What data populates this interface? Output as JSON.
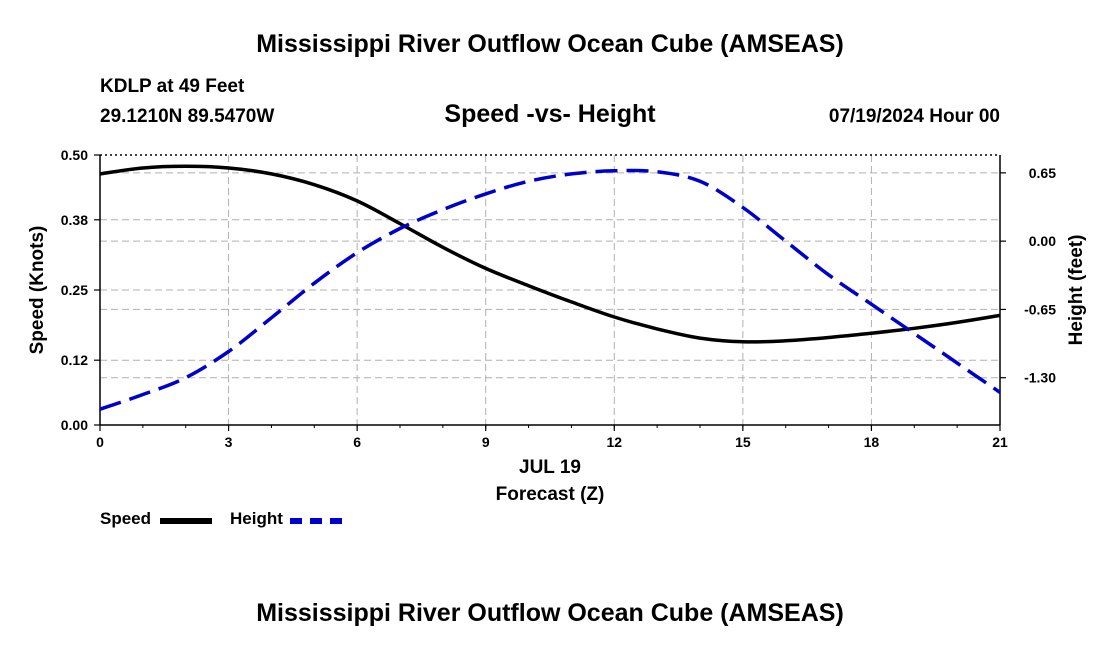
{
  "page": {
    "title_top": "Mississippi River Outflow Ocean Cube (AMSEAS)",
    "title_bottom": "Mississippi River Outflow Ocean Cube (AMSEAS)",
    "station": "KDLP at 49 Feet",
    "coords": "29.1210N  89.5470W",
    "subtitle": "Speed -vs- Height",
    "datehour": "07/19/2024 Hour 00"
  },
  "colors": {
    "speed": "#000000",
    "height": "#0000cc",
    "grid": "#b0b0b0"
  },
  "chart_data": {
    "type": "line",
    "title": "Speed -vs- Height",
    "xlabel": "Forecast (Z)",
    "xlabel_date": "JUL 19",
    "ylabel": "Speed (Knots)",
    "ylabel_right": "Height (feet)",
    "xlim": [
      0,
      21
    ],
    "ylim": [
      0,
      0.5
    ],
    "ylim_right": [
      -1.75,
      0.82
    ],
    "x_ticks": [
      "0",
      "3",
      "6",
      "9",
      "12",
      "15",
      "18",
      "21"
    ],
    "y_ticks": [
      "0.00",
      "0.12",
      "0.25",
      "0.38",
      "0.50"
    ],
    "y_ticks_right": [
      "0.65",
      "0.00",
      "-0.65",
      "-1.30"
    ],
    "grid": true,
    "series": [
      {
        "name": "Speed",
        "axis": "left",
        "style": "solid",
        "x": [
          0,
          1,
          2,
          3,
          4,
          5,
          6,
          7,
          8,
          9,
          10,
          11,
          12,
          13,
          14,
          15,
          16,
          17,
          18,
          19,
          20,
          21
        ],
        "values": [
          0.465,
          0.476,
          0.479,
          0.476,
          0.465,
          0.445,
          0.415,
          0.373,
          0.329,
          0.29,
          0.258,
          0.228,
          0.2,
          0.178,
          0.161,
          0.154,
          0.156,
          0.162,
          0.17,
          0.179,
          0.19,
          0.203
        ]
      },
      {
        "name": "Height",
        "axis": "right",
        "style": "dashed",
        "x": [
          0,
          1,
          2,
          3,
          4,
          5,
          6,
          7,
          8,
          9,
          10,
          11,
          12,
          13,
          14,
          15,
          16,
          17,
          18,
          19,
          20,
          21
        ],
        "values": [
          -1.6,
          -1.46,
          -1.3,
          -1.05,
          -0.73,
          -0.4,
          -0.11,
          0.12,
          0.3,
          0.45,
          0.57,
          0.64,
          0.67,
          0.66,
          0.57,
          0.32,
          0.0,
          -0.32,
          -0.6,
          -0.88,
          -1.16,
          -1.44
        ]
      }
    ],
    "legend": [
      {
        "label": "Speed",
        "style": "solid"
      },
      {
        "label": "Height",
        "style": "dashed"
      }
    ]
  }
}
